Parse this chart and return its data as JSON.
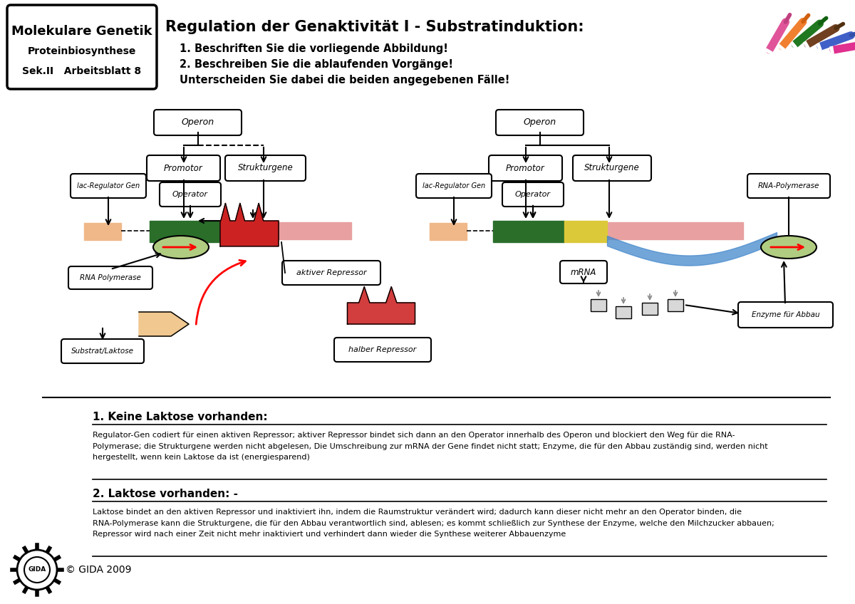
{
  "title": "Regulation der Genaktivität I - Substratinduktion:",
  "subtitle_line1": "1. Beschriften Sie die vorliegende Abbildung!",
  "subtitle_line2": "2. Beschreiben Sie die ablaufenden Vorgänge!",
  "subtitle_line3": "Unterscheiden Sie dabei die beiden angegebenen Fälle!",
  "header_box_line1": "Molekulare Genetik",
  "header_box_line2": "Proteinbiosynthese",
  "header_box_line3": "Sek.II   Arbeitsblatt 8",
  "footer_text": "© GIDA 2009",
  "section1_title": "1. Keine Laktose vorhanden:",
  "section1_text": "Regulator-Gen codiert für einen aktiven Repressor; aktiver Repressor bindet sich dann an den Operator innerhalb des Operon und blockiert den Weg für die RNA-\nPolymerase; die Strukturgene werden nicht abgelesen, Die Umschreibung zur mRNA der Gene findet nicht statt; Enzyme, die für den Abbau zuständig sind, werden nicht\nhergestellt, wenn kein Laktose da ist (energiesparend)",
  "section2_title": "2. Laktose vorhanden:",
  "section2_tick": " -",
  "section2_text": "Laktose bindet an den aktiven Repressor und inaktiviert ihn, indem die Raumstruktur verändert wird; dadurch kann dieser nicht mehr an den Operator binden, die\nRNA-Polymerase kann die Strukturgene, die für den Abbau verantwortlich sind, ablesen; es kommt schließlich zur Synthese der Enzyme, welche den Milchzucker abbauen;\nRepressor wird nach einer Zeit nicht mehr inaktiviert und verhindert dann wieder die Synthese weiterer Abbauenzyme",
  "bg_color": "#ffffff",
  "green_color": "#2a6e2a",
  "yellow_color": "#dcc93a",
  "red_color": "#cc2222",
  "pink_color": "#e8a0a0",
  "orange_light": "#f0b888",
  "light_green": "#b0cc80",
  "blue_color": "#4488cc",
  "pen_colors": [
    "#e0559a",
    "#f08030",
    "#207820",
    "#704020",
    "#4060c8",
    "#e03090"
  ],
  "pen_tip_colors": [
    "#c04080",
    "#d06010",
    "#106010",
    "#503010",
    "#3050a8",
    "#c02070"
  ]
}
